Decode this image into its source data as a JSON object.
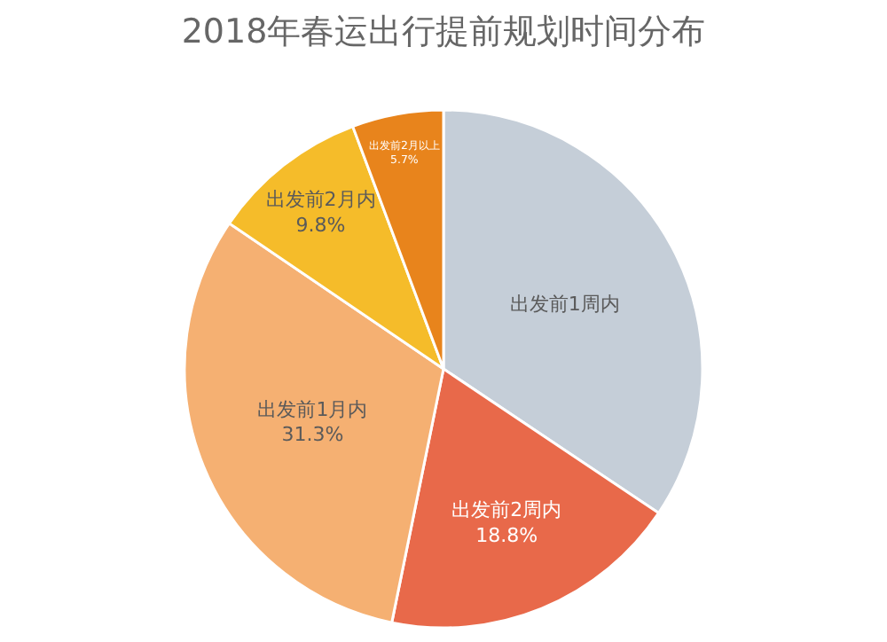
{
  "chart_data": {
    "type": "pie",
    "title": "2018年春运出行提前规划时间分布",
    "categories": [
      "出发前1周内",
      "出发前2周内",
      "出发前1月内",
      "出发前2月内",
      "出发前2月以上"
    ],
    "values": [
      34.4,
      18.8,
      31.3,
      9.8,
      5.7
    ],
    "value_labels": [
      null,
      "18.8%",
      "31.3%",
      "9.8%",
      "5.7%"
    ],
    "colors": [
      "#c5ced8",
      "#e8694a",
      "#f5b072",
      "#f5bc2a",
      "#e8841c"
    ],
    "legend": false
  }
}
